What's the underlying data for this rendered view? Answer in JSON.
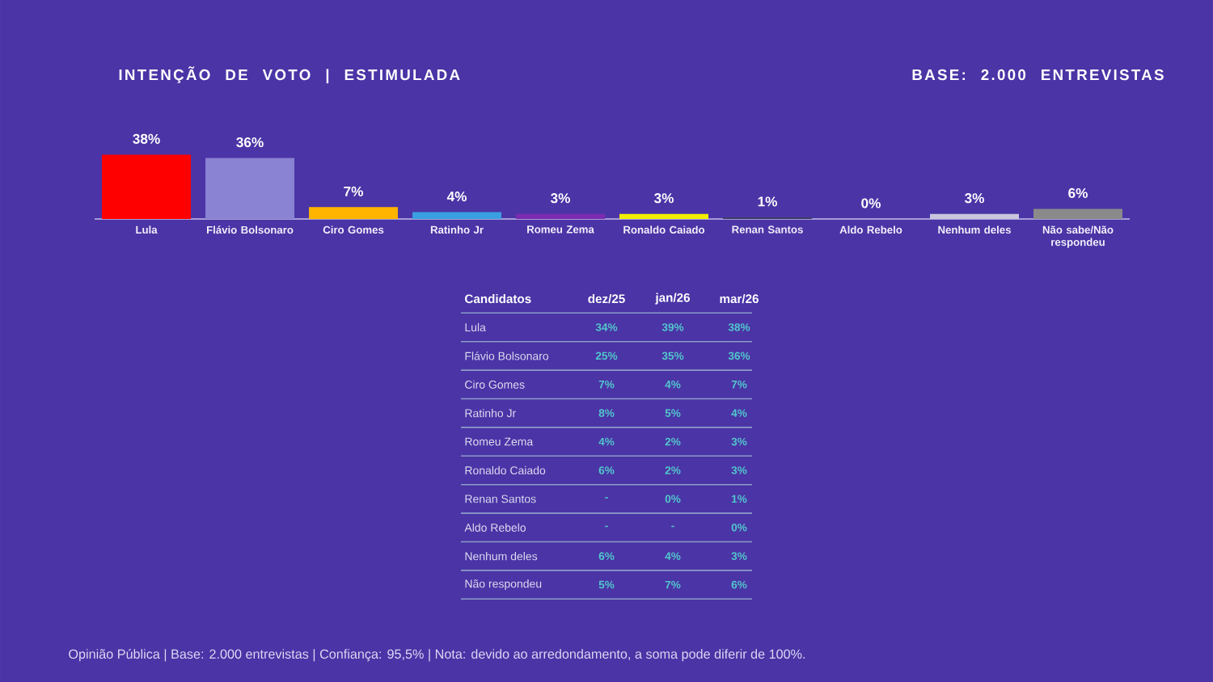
{
  "chart_data": [
    {
      "type": "bar",
      "title": "INTENÇÃO DE VOTO | ESTIMULADA",
      "subtitle": "BASE: 2.000 ENTREVISTAS",
      "categories": [
        "Lula",
        "Flávio Bolsonaro",
        "Ciro Gomes",
        "Ratinho Jr",
        "Romeu Zema",
        "Ronaldo Caiado",
        "Renan Santos",
        "Aldo Rebelo",
        "Nenhum deles",
        "Não sabe/Não respondeu"
      ],
      "values": [
        38,
        36,
        7,
        4,
        3,
        3,
        1,
        0,
        3,
        6
      ],
      "colors": [
        "#ff0000",
        "#8a82d2",
        "#ffb400",
        "#3a9fe0",
        "#7a2cb0",
        "#f2ee00",
        "#3c3c66",
        "#3c3c66",
        "#c8c6dc",
        "#8a8a8a"
      ],
      "value_labels": [
        "38%",
        "36%",
        "7%",
        "4%",
        "3%",
        "3%",
        "1%",
        "0%",
        "3%",
        "6%"
      ],
      "annotations": [
        "Opinião Pública | Base: 2.000 entrevistas | Confiança: 95,5% | Nota: devido ao arredondamento, a soma pode diferir de 100%."
      ]
    },
    {
      "type": "other",
      "ylabel": "Candidatos",
      "categories": [
        "dez/25",
        "jan/26",
        "mar/26"
      ],
      "y_categories": [
        "Lula",
        "Flávio Bolsonaro",
        "Ciro Gomes",
        "Ratinho Jr",
        "Romeu Zema",
        "Ronaldo Caiado",
        "Renan Santos",
        "Aldo Rebelo",
        "Nenhum deles",
        "Não respondeu"
      ],
      "cell_labels": [
        [
          "34%",
          "39%",
          "38%"
        ],
        [
          "25%",
          "35%",
          "36%"
        ],
        [
          "7%",
          "4%",
          "7%"
        ],
        [
          "8%",
          "5%",
          "4%"
        ],
        [
          "4%",
          "2%",
          "3%"
        ],
        [
          "6%",
          "2%",
          "3%"
        ],
        [
          "-",
          "0%",
          "1%"
        ],
        [
          "-",
          "-",
          "0%"
        ],
        [
          "6%",
          "4%",
          "3%"
        ],
        [
          "5%",
          "7%",
          "6%"
        ]
      ]
    }
  ]
}
